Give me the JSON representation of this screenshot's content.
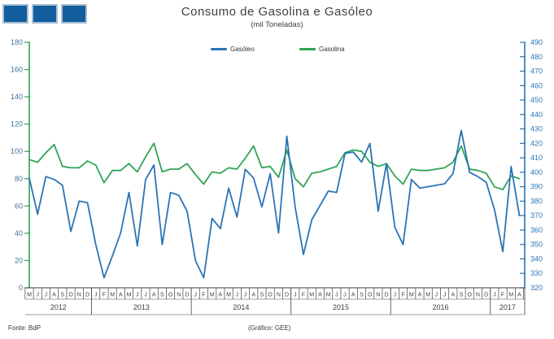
{
  "logo": {
    "name": "three-squares-logo",
    "square_count": 3,
    "square_fill": "#135F9D",
    "square_border": "#A8C0D5"
  },
  "header": {
    "title": "Consumo de Gasolina e Gasóleo",
    "subtitle": "(mil Toneladas)"
  },
  "footer": {
    "source": "Fonte: BdP",
    "credit": "(Gráfico: GEE)"
  },
  "chart_data": {
    "type": "line",
    "title": "Consumo de Gasolina e Gasóleo",
    "subtitle": "(mil Toneladas)",
    "grid": "off",
    "legend_position": "top-center",
    "left_axis": {
      "min": 0,
      "max": 180,
      "step": 20,
      "color": "#2FA457",
      "label_color": "#41719C"
    },
    "right_axis": {
      "min": 320,
      "max": 490,
      "step": 10,
      "color": "#2B74B6",
      "label_color": "#2E75B6"
    },
    "x_axis_color": "#404040",
    "month_labels": [
      "M",
      "J",
      "J",
      "A",
      "S",
      "O",
      "N",
      "D",
      "J",
      "F",
      "M",
      "A",
      "M",
      "J",
      "J",
      "A",
      "S",
      "O",
      "N",
      "D",
      "J",
      "F",
      "M",
      "A",
      "M",
      "J",
      "J",
      "A",
      "S",
      "O",
      "N",
      "D",
      "J",
      "F",
      "M",
      "A",
      "M",
      "J",
      "J",
      "A",
      "S",
      "O",
      "N",
      "D",
      "J",
      "F",
      "M",
      "A",
      "M",
      "J",
      "J",
      "A",
      "S",
      "O",
      "N",
      "D",
      "J",
      "F",
      "M",
      "A"
    ],
    "year_groups": [
      {
        "label": "2012",
        "months": 8
      },
      {
        "label": "2013",
        "months": 12
      },
      {
        "label": "2014",
        "months": 12
      },
      {
        "label": "2015",
        "months": 12
      },
      {
        "label": "2016",
        "months": 12
      },
      {
        "label": "2017",
        "months": 4
      }
    ],
    "series": [
      {
        "name": "Gasóleo",
        "color": "#2B74B6",
        "axis": "right",
        "values": [
          396,
          371,
          397,
          395,
          391,
          359,
          380,
          379,
          350,
          327,
          342,
          358,
          386,
          349,
          395,
          405,
          350,
          386,
          384,
          373,
          339,
          327,
          368,
          361,
          389,
          369,
          402,
          396,
          376,
          399,
          358,
          425,
          376,
          343,
          367,
          377,
          387,
          386,
          413,
          414,
          407,
          420,
          373,
          406,
          362,
          350,
          395,
          389,
          390,
          391,
          392,
          399,
          429,
          400,
          397,
          393,
          374,
          345,
          404,
          370
        ]
      },
      {
        "name": "Gasolina",
        "color": "#2FA457",
        "axis": "left",
        "values": [
          94,
          92,
          99,
          105,
          89,
          88,
          88,
          93,
          90,
          77,
          86,
          86,
          91,
          85,
          96,
          106,
          85,
          87,
          87,
          91,
          83,
          76,
          85,
          84,
          88,
          87,
          95,
          104,
          88,
          89,
          81,
          101,
          80,
          74,
          84,
          85,
          87,
          89,
          99,
          101,
          100,
          92,
          89,
          91,
          82,
          76,
          87,
          86,
          86,
          87,
          88,
          92,
          104,
          87,
          86,
          84,
          74,
          72,
          82,
          80
        ]
      }
    ]
  }
}
